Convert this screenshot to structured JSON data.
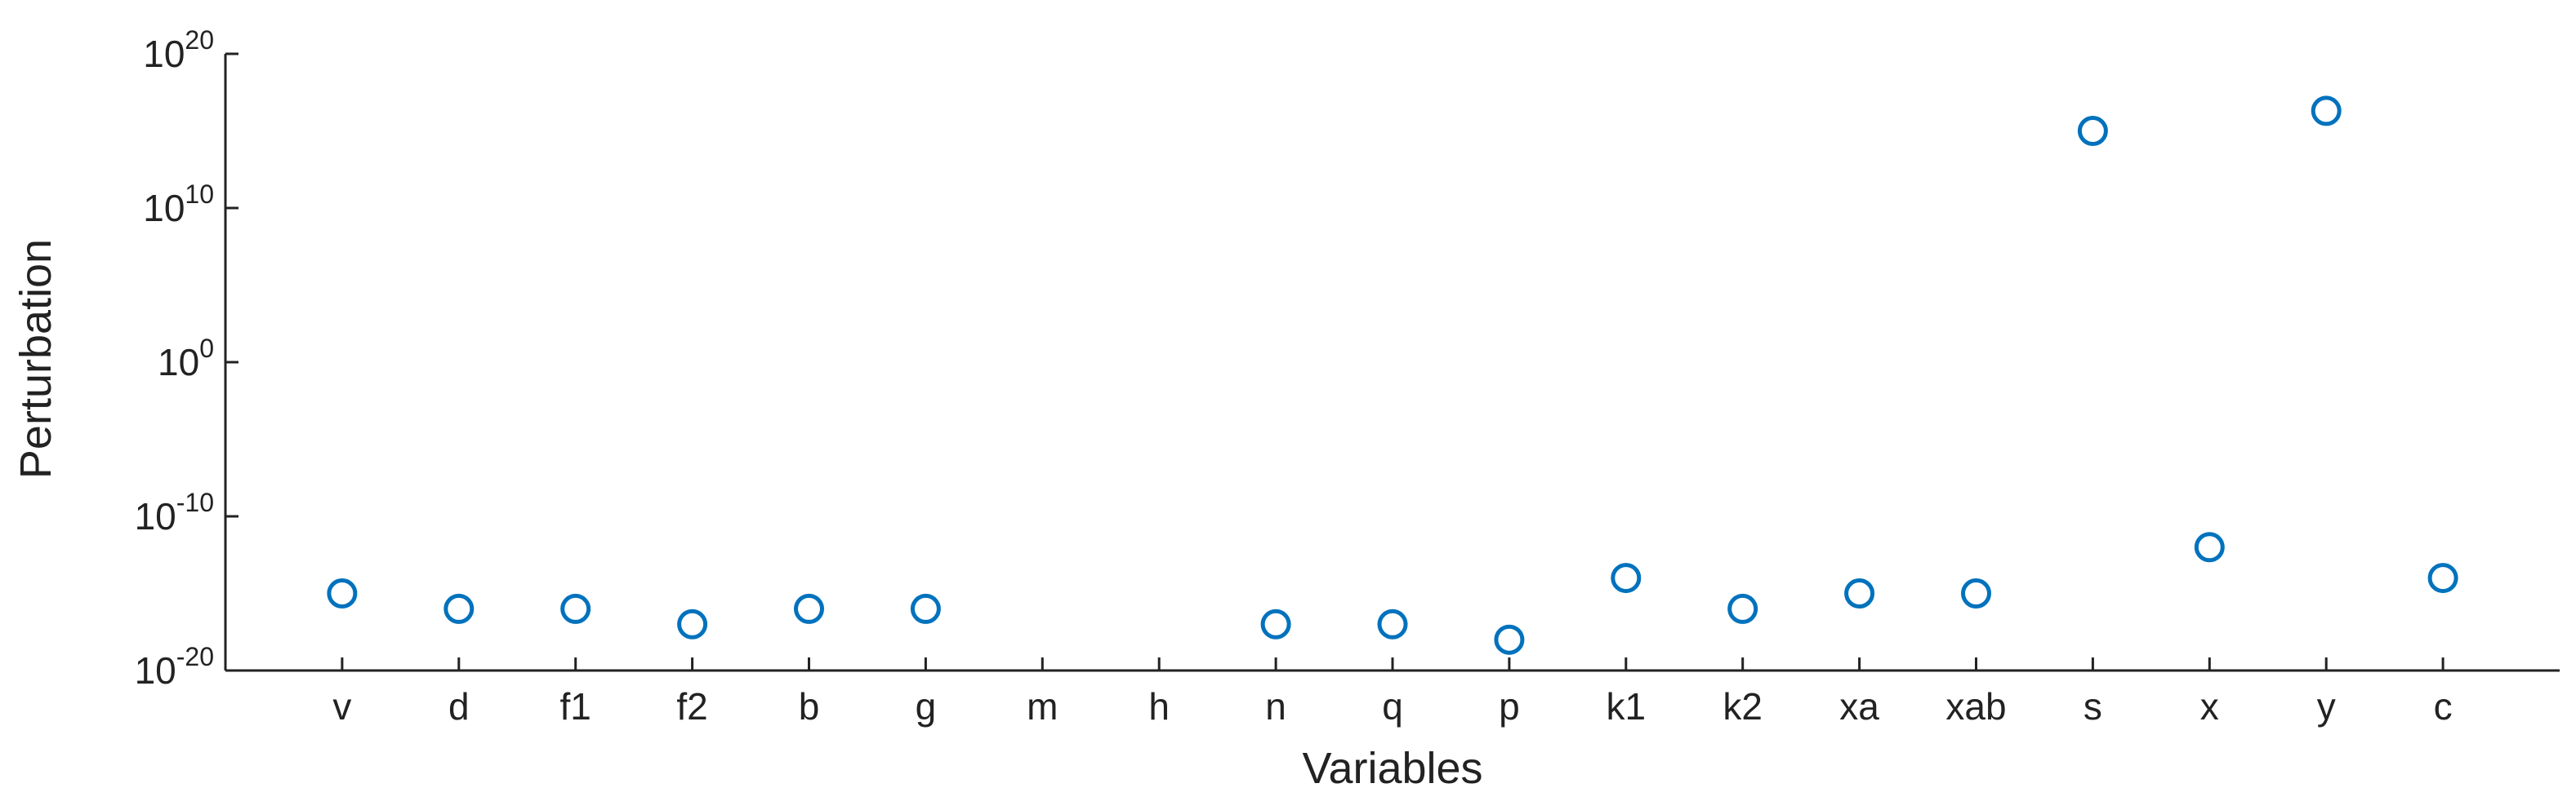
{
  "chart_data": {
    "type": "scatter",
    "xlabel": "Variables",
    "ylabel": "Perturbation",
    "categories": [
      "v",
      "d",
      "f1",
      "f2",
      "b",
      "g",
      "m",
      "h",
      "n",
      "q",
      "p",
      "k1",
      "k2",
      "xa",
      "xab",
      "s",
      "x",
      "y",
      "c"
    ],
    "values": [
      1e-15,
      1e-16,
      1e-16,
      1e-17,
      1e-16,
      1e-16,
      null,
      null,
      1e-17,
      1e-17,
      1e-18,
      1e-14,
      1e-16,
      1e-15,
      1e-15,
      1000000000000000.0,
      1e-12,
      2e+16,
      1e-14
    ],
    "color": "#0072bd",
    "log_y": true,
    "ylim": [
      1e-20,
      1e+20
    ],
    "yticks": [
      {
        "value": 1e-20,
        "label": "10^-20"
      },
      {
        "value": 1e-10,
        "label": "10^-10"
      },
      {
        "value": 1,
        "label": "10^0"
      },
      {
        "value": 10000000000.0,
        "label": "10^10"
      },
      {
        "value": 1e+20,
        "label": "10^20"
      }
    ]
  }
}
